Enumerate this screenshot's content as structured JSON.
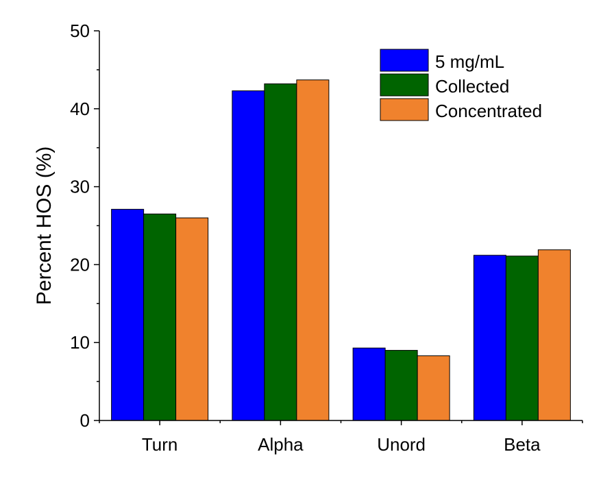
{
  "chart_data": {
    "type": "bar",
    "title": "",
    "xlabel": "",
    "ylabel": "Percent HOS (%)",
    "categories": [
      "Turn",
      "Alpha",
      "Unord",
      "Beta"
    ],
    "series": [
      {
        "name": "5 mg/mL",
        "color": "#0000ff",
        "values": [
          27.1,
          42.3,
          9.3,
          21.2
        ]
      },
      {
        "name": "Collected",
        "color": "#006400",
        "values": [
          26.5,
          43.2,
          9.0,
          21.1
        ]
      },
      {
        "name": "Concentrated",
        "color": "#f0822d",
        "values": [
          26.0,
          43.7,
          8.3,
          21.9
        ]
      }
    ],
    "ylim": [
      0,
      50
    ],
    "yticks": [
      0,
      10,
      20,
      30,
      40,
      50
    ],
    "grid": false,
    "legend_position": "top-right"
  }
}
